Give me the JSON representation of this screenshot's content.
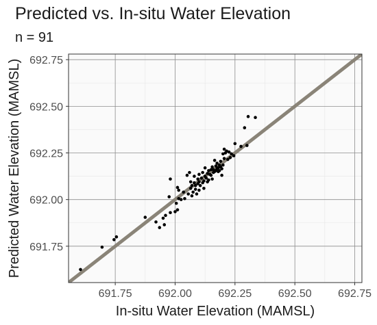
{
  "chart_data": {
    "type": "scatter",
    "title": "Predicted vs. In-situ Water Elevation",
    "subtitle": "n = 91",
    "xlabel": "In-situ Water Elevation (MAMSL)",
    "ylabel": "Predicted Water Elevation (MAMSL)",
    "xlim": [
      691.555,
      692.78
    ],
    "ylim": [
      691.555,
      692.78
    ],
    "x_ticks": [
      "691.75",
      "692.00",
      "692.25",
      "692.50",
      "692.75"
    ],
    "y_ticks": [
      "691.75",
      "692.00",
      "692.25",
      "692.50",
      "692.75"
    ],
    "grid": true,
    "reference_line": {
      "type": "1:1",
      "color": "#8a8478"
    },
    "point_color": "#000000",
    "points": [
      [
        691.605,
        691.625
      ],
      [
        691.695,
        691.745
      ],
      [
        691.745,
        691.785
      ],
      [
        691.755,
        691.8
      ],
      [
        691.875,
        691.905
      ],
      [
        691.92,
        691.88
      ],
      [
        691.935,
        691.85
      ],
      [
        691.95,
        691.9
      ],
      [
        691.955,
        691.865
      ],
      [
        691.96,
        691.915
      ],
      [
        691.975,
        692.015
      ],
      [
        691.98,
        691.93
      ],
      [
        691.98,
        692.11
      ],
      [
        692.0,
        691.935
      ],
      [
        692.005,
        691.98
      ],
      [
        692.01,
        691.945
      ],
      [
        692.01,
        692.065
      ],
      [
        692.015,
        692.005
      ],
      [
        692.015,
        692.05
      ],
      [
        692.025,
        692.0
      ],
      [
        692.035,
        692.04
      ],
      [
        692.04,
        692.005
      ],
      [
        692.05,
        692.13
      ],
      [
        692.055,
        692.03
      ],
      [
        692.06,
        692.145
      ],
      [
        692.065,
        692.06
      ],
      [
        692.065,
        692.095
      ],
      [
        692.07,
        692.02
      ],
      [
        692.07,
        692.075
      ],
      [
        692.075,
        692.04
      ],
      [
        692.08,
        692.09
      ],
      [
        692.08,
        692.125
      ],
      [
        692.085,
        692.055
      ],
      [
        692.085,
        692.075
      ],
      [
        692.09,
        692.03
      ],
      [
        692.095,
        692.085
      ],
      [
        692.095,
        692.11
      ],
      [
        692.1,
        692.05
      ],
      [
        692.1,
        692.095
      ],
      [
        692.1,
        692.135
      ],
      [
        692.105,
        692.075
      ],
      [
        692.11,
        692.115
      ],
      [
        692.115,
        692.145
      ],
      [
        692.115,
        692.09
      ],
      [
        692.12,
        692.06
      ],
      [
        692.12,
        692.1
      ],
      [
        692.125,
        692.125
      ],
      [
        692.125,
        692.17
      ],
      [
        692.13,
        692.115
      ],
      [
        692.135,
        692.095
      ],
      [
        692.135,
        692.14
      ],
      [
        692.14,
        692.155
      ],
      [
        692.14,
        692.105
      ],
      [
        692.145,
        692.135
      ],
      [
        692.15,
        692.13
      ],
      [
        692.15,
        692.16
      ],
      [
        692.155,
        692.11
      ],
      [
        692.155,
        692.175
      ],
      [
        692.16,
        692.145
      ],
      [
        692.16,
        692.16
      ],
      [
        692.165,
        692.15
      ],
      [
        692.165,
        692.21
      ],
      [
        692.17,
        692.155
      ],
      [
        692.17,
        692.18
      ],
      [
        692.175,
        692.165
      ],
      [
        692.175,
        692.195
      ],
      [
        692.18,
        692.15
      ],
      [
        692.18,
        692.17
      ],
      [
        692.185,
        692.185
      ],
      [
        692.185,
        692.155
      ],
      [
        692.19,
        692.175
      ],
      [
        692.19,
        692.205
      ],
      [
        692.195,
        692.165
      ],
      [
        692.195,
        692.13
      ],
      [
        692.2,
        692.185
      ],
      [
        692.2,
        692.245
      ],
      [
        692.205,
        692.27
      ],
      [
        692.205,
        692.22
      ],
      [
        692.21,
        692.25
      ],
      [
        692.215,
        692.26
      ],
      [
        692.22,
        692.215
      ],
      [
        692.225,
        692.255
      ],
      [
        692.23,
        692.225
      ],
      [
        692.235,
        692.245
      ],
      [
        692.245,
        692.235
      ],
      [
        692.25,
        692.3
      ],
      [
        692.275,
        692.285
      ],
      [
        692.29,
        692.385
      ],
      [
        692.3,
        692.29
      ],
      [
        692.305,
        692.445
      ],
      [
        692.335,
        692.44
      ]
    ]
  }
}
